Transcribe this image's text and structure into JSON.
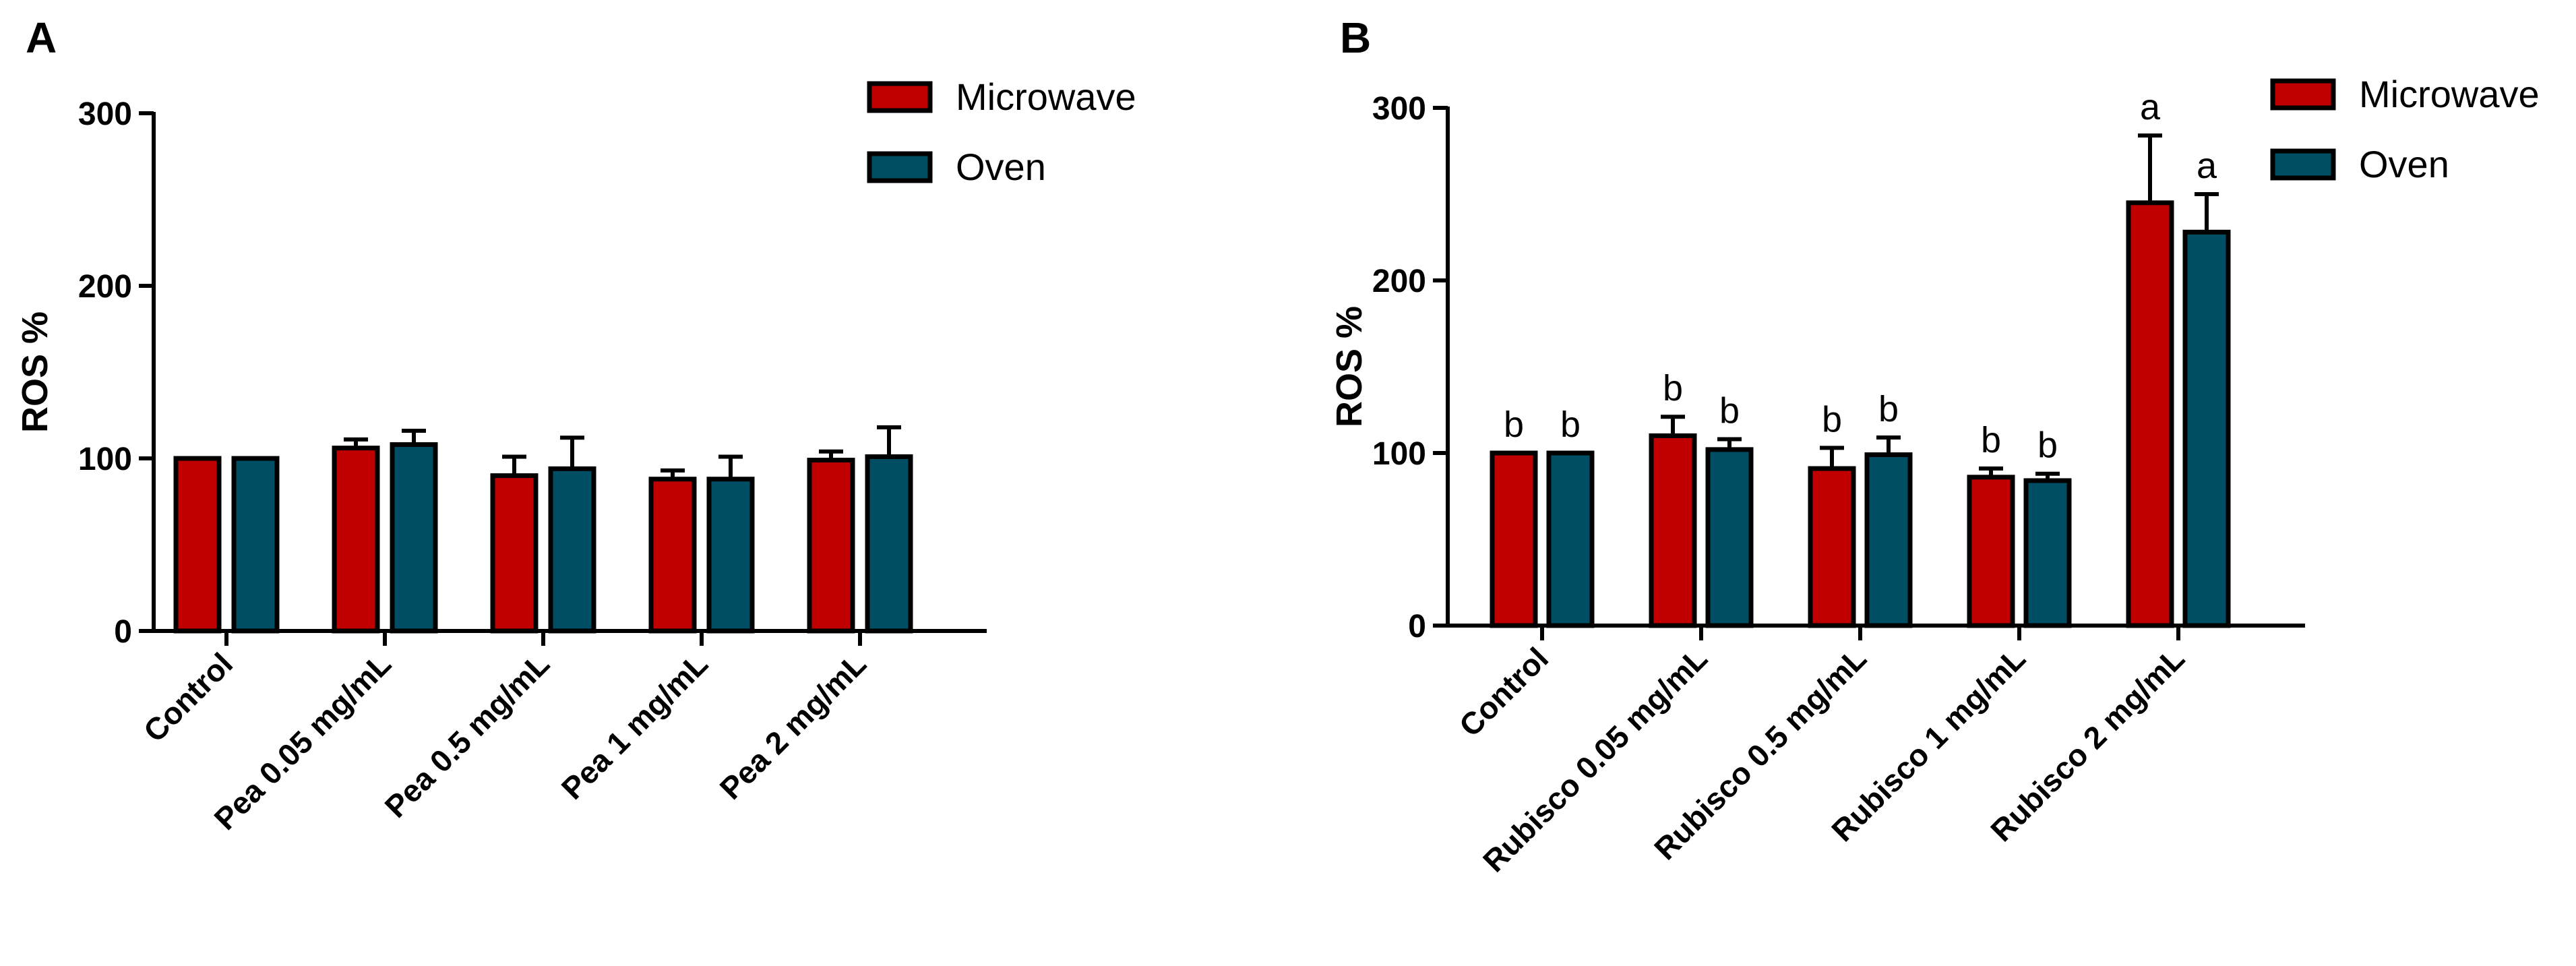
{
  "chart_data": [
    {
      "panel": "A",
      "type": "bar",
      "title": "",
      "xlabel": "",
      "ylabel": "ROS %",
      "ylim": [
        0,
        300
      ],
      "yticks": [
        0,
        100,
        200,
        300
      ],
      "categories": [
        "Control",
        "Pea 0.05 mg/mL",
        "Pea 0.5 mg/mL",
        "Pea 1 mg/mL",
        "Pea 2 mg/mL"
      ],
      "series": [
        {
          "name": "Microwave",
          "color": "#c00000",
          "values": [
            100,
            106,
            90,
            88,
            99
          ],
          "errors": [
            0,
            5,
            11,
            5,
            5
          ],
          "labels": [
            "",
            "",
            "",
            "",
            ""
          ]
        },
        {
          "name": "Oven",
          "color": "#004e64",
          "values": [
            100,
            108,
            94,
            88,
            101
          ],
          "errors": [
            0,
            8,
            18,
            13,
            17
          ],
          "labels": [
            "",
            "",
            "",
            "",
            ""
          ]
        }
      ],
      "legend": "top-right"
    },
    {
      "panel": "B",
      "type": "bar",
      "title": "",
      "xlabel": "",
      "ylabel": "ROS %",
      "ylim": [
        0,
        300
      ],
      "yticks": [
        0,
        100,
        200,
        300
      ],
      "categories": [
        "Control",
        "Rubisco 0.05 mg/mL",
        "Rubisco 0.5 mg/mL",
        "Rubisco 1 mg/mL",
        "Rubisco 2 mg/mL"
      ],
      "series": [
        {
          "name": "Microwave",
          "color": "#c00000",
          "values": [
            100,
            110,
            91,
            86,
            245
          ],
          "errors": [
            0,
            11,
            12,
            5,
            39
          ],
          "labels": [
            "b",
            "b",
            "b",
            "b",
            "a"
          ]
        },
        {
          "name": "Oven",
          "color": "#004e64",
          "values": [
            100,
            102,
            99,
            84,
            228
          ],
          "errors": [
            0,
            6,
            10,
            4,
            22
          ],
          "labels": [
            "b",
            "b",
            "b",
            "b",
            "a"
          ]
        }
      ],
      "legend": "top-right"
    }
  ]
}
